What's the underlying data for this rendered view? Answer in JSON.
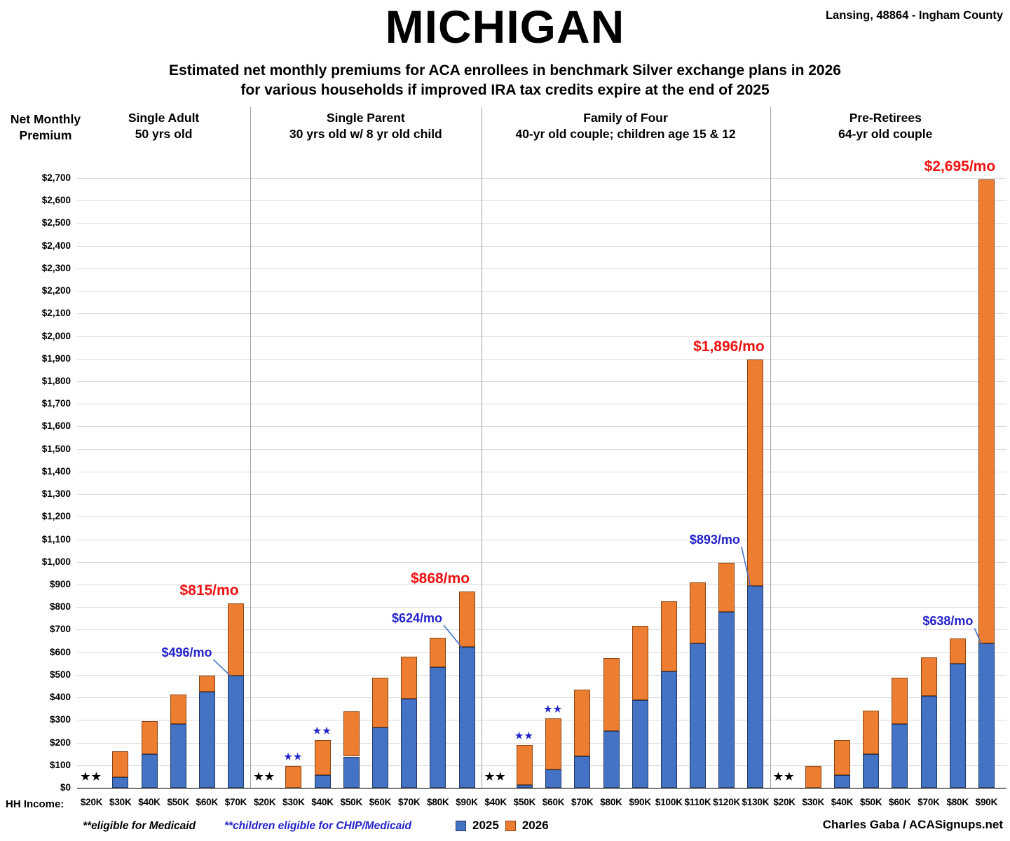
{
  "header": {
    "title": "MICHIGAN",
    "location": "Lansing, 48864 - Ingham County",
    "subtitle_line1": "Estimated net monthly premiums for ACA enrollees in benchmark Silver exchange plans in 2026",
    "subtitle_line2": "for various households if improved IRA tax credits expire at the end of 2025"
  },
  "axis": {
    "y_title_line1": "Net Monthly",
    "y_title_line2": "Premium",
    "x_title": "HH Income:"
  },
  "legend": {
    "items": [
      {
        "label": "2025",
        "color": "#4472C4"
      },
      {
        "label": "2026",
        "color": "#ED7D31"
      }
    ]
  },
  "footnotes": {
    "medicaid": "**eligible for Medicaid",
    "chip": "**children eligible for CHIP/Medicaid"
  },
  "credit": "Charles Gaba / ACASignups.net",
  "symbols": {
    "star_pair": "★★"
  },
  "colors": {
    "series_2025": "#4472C4",
    "series_2026": "#ED7D31",
    "border_2025": "#1F3864",
    "border_2026": "#8A4412",
    "callout_red": "#EE1111",
    "callout_blue": "#2222CC",
    "gridline": "#D9D9D9",
    "axis_line": "#7A7A7A",
    "divider": "#A0A0A0"
  },
  "chart_data": {
    "type": "bar",
    "stacked": true,
    "title": "MICHIGAN — Estimated net monthly premiums for ACA enrollees in benchmark Silver exchange plans in 2026",
    "xlabel": "HH Income",
    "ylabel": "Net Monthly Premium",
    "ylim": [
      0,
      2700
    ],
    "ytick_step": 100,
    "grid": true,
    "legend_position": "bottom",
    "series_names": [
      "2025",
      "2026"
    ],
    "groups": [
      {
        "title_line1": "Single Adult",
        "title_line2": "50 yrs old",
        "callout_2026": "$815/mo",
        "callout_2025": "$496/mo",
        "bars": [
          {
            "income": "$20K",
            "medicaid": true
          },
          {
            "income": "$30K",
            "p2025": 48,
            "p2026": 163
          },
          {
            "income": "$40K",
            "p2025": 150,
            "p2026": 295
          },
          {
            "income": "$50K",
            "p2025": 283,
            "p2026": 413
          },
          {
            "income": "$60K",
            "p2025": 425,
            "p2026": 497
          },
          {
            "income": "$70K",
            "p2025": 496,
            "p2026": 815
          }
        ]
      },
      {
        "title_line1": "Single Parent",
        "title_line2": "30 yrs old w/ 8 yr old child",
        "callout_2026": "$868/mo",
        "callout_2025": "$624/mo",
        "bars": [
          {
            "income": "$20K",
            "medicaid": true
          },
          {
            "income": "$30K",
            "p2025": 0,
            "p2026": 95,
            "chip": true
          },
          {
            "income": "$40K",
            "p2025": 55,
            "p2026": 212,
            "chip": true
          },
          {
            "income": "$50K",
            "p2025": 138,
            "p2026": 337
          },
          {
            "income": "$60K",
            "p2025": 268,
            "p2026": 487
          },
          {
            "income": "$70K",
            "p2025": 395,
            "p2026": 580
          },
          {
            "income": "$80K",
            "p2025": 535,
            "p2026": 663
          },
          {
            "income": "$90K",
            "p2025": 624,
            "p2026": 868
          }
        ]
      },
      {
        "title_line1": "Family of Four",
        "title_line2": "40-yr old couple; children age 15 & 12",
        "callout_2026": "$1,896/mo",
        "callout_2025": "$893/mo",
        "bars": [
          {
            "income": "$40K",
            "medicaid": true
          },
          {
            "income": "$50K",
            "p2025": 12,
            "p2026": 190,
            "chip": true
          },
          {
            "income": "$60K",
            "p2025": 80,
            "p2026": 308,
            "chip": true
          },
          {
            "income": "$70K",
            "p2025": 140,
            "p2026": 435
          },
          {
            "income": "$80K",
            "p2025": 252,
            "p2026": 573
          },
          {
            "income": "$90K",
            "p2025": 387,
            "p2026": 718
          },
          {
            "income": "$100K",
            "p2025": 515,
            "p2026": 825
          },
          {
            "income": "$110K",
            "p2025": 640,
            "p2026": 910
          },
          {
            "income": "$120K",
            "p2025": 780,
            "p2026": 995
          },
          {
            "income": "$130K",
            "p2025": 893,
            "p2026": 1896
          }
        ]
      },
      {
        "title_line1": "Pre-Retirees",
        "title_line2": "64-yr old couple",
        "callout_2026": "$2,695/mo",
        "callout_2025": "$638/mo",
        "bars": [
          {
            "income": "$20K",
            "medicaid": true
          },
          {
            "income": "$30K",
            "p2025": 0,
            "p2026": 95
          },
          {
            "income": "$40K",
            "p2025": 55,
            "p2026": 210
          },
          {
            "income": "$50K",
            "p2025": 150,
            "p2026": 340
          },
          {
            "income": "$60K",
            "p2025": 283,
            "p2026": 487
          },
          {
            "income": "$70K",
            "p2025": 408,
            "p2026": 578
          },
          {
            "income": "$80K",
            "p2025": 550,
            "p2026": 662
          },
          {
            "income": "$90K",
            "p2025": 638,
            "p2026": 2695
          }
        ]
      }
    ]
  }
}
